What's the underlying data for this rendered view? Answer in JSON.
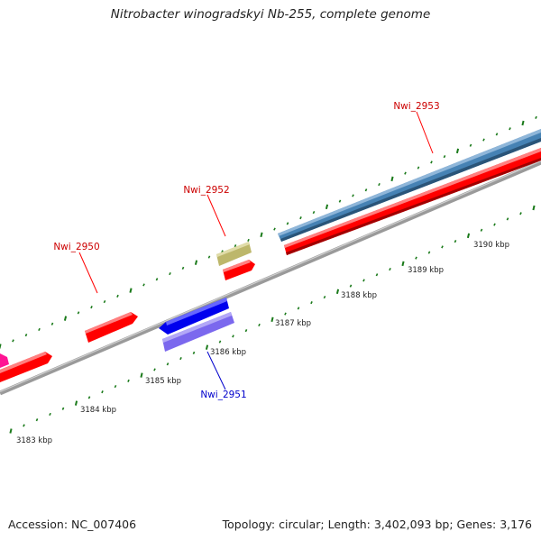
{
  "title": "Nitrobacter winogradskyi Nb-255, complete genome",
  "footer": {
    "accession": "Accession: NC_007406",
    "summary": "Topology: circular; Length: 3,402,093 bp; Genes: 3,176"
  },
  "colors": {
    "forward_gene": "#ff0000",
    "forward_label": "#cc0000",
    "reverse_gene": "#0000ee",
    "reverse_label": "#0000cc",
    "cds_bar_blue": "#4682b4",
    "cds_bar_purple": "#7b68ee",
    "olive_feature": "#bdb76b",
    "magenta_feature": "#ff1493",
    "backbone": "#808080",
    "tick_mark": "#1a7a1a"
  },
  "ruler": {
    "unit": "kbp",
    "tick_labels": [
      "3183 kbp",
      "3184 kbp",
      "3185 kbp",
      "3186 kbp",
      "3187 kbp",
      "3188 kbp",
      "3189 kbp",
      "3190 kbp"
    ]
  },
  "genes": [
    {
      "label": "Nwi_2950",
      "strand": "forward"
    },
    {
      "label": "Nwi_2951",
      "strand": "reverse"
    },
    {
      "label": "Nwi_2952",
      "strand": "forward"
    },
    {
      "label": "Nwi_2953",
      "strand": "forward"
    }
  ]
}
